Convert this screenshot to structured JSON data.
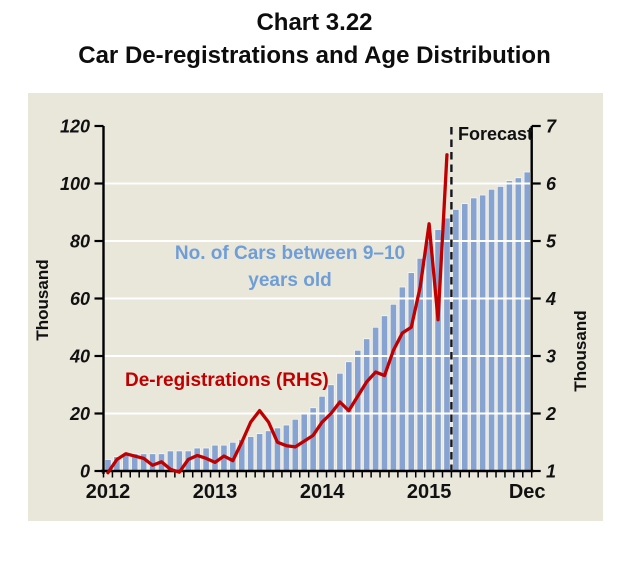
{
  "title": {
    "line1": "Chart 3.22",
    "line2": "Car De-registrations and Age Distribution"
  },
  "chart_data": {
    "type": "bar+line",
    "x": {
      "start": "Jan 2012",
      "end": "Dec 2015",
      "frequency": "monthly",
      "year_tick_labels": [
        "2012",
        "2013",
        "2014",
        "2015",
        "Dec"
      ],
      "year_tick_month_indices": [
        0,
        12,
        24,
        36,
        47
      ]
    },
    "left_axis": {
      "label": "Thousand",
      "range": [
        0,
        120
      ],
      "ticks": [
        0,
        20,
        40,
        60,
        80,
        100,
        120
      ]
    },
    "right_axis": {
      "label": "Thousand",
      "range": [
        1,
        7
      ],
      "ticks": [
        1,
        2,
        3,
        4,
        5,
        6,
        7
      ]
    },
    "series": [
      {
        "name": "No. of Cars between 9–10 years old",
        "type": "bar",
        "axis": "left",
        "color": "#86a3d2",
        "values": [
          4,
          5,
          6,
          6,
          6,
          6,
          6,
          7,
          7,
          7,
          8,
          8,
          9,
          9,
          10,
          11,
          12,
          13,
          14,
          15,
          16,
          18,
          20,
          22,
          26,
          30,
          34,
          38,
          42,
          46,
          50,
          54,
          58,
          64,
          69,
          74,
          80,
          84,
          88,
          91,
          93,
          95,
          96,
          98,
          99,
          101,
          102,
          104
        ]
      },
      {
        "name": "De-registrations (RHS)",
        "type": "line",
        "axis": "right",
        "color": "#c00000",
        "ends_at": "Mar 2015",
        "values": [
          0.97,
          1.2,
          1.3,
          1.26,
          1.22,
          1.1,
          1.16,
          1.03,
          0.98,
          1.2,
          1.27,
          1.22,
          1.15,
          1.26,
          1.18,
          1.5,
          1.85,
          2.05,
          1.85,
          1.5,
          1.44,
          1.42,
          1.52,
          1.62,
          1.85,
          2.0,
          2.2,
          2.05,
          2.3,
          2.55,
          2.72,
          2.66,
          3.1,
          3.4,
          3.5,
          4.2,
          5.3,
          3.63,
          6.5
        ]
      }
    ],
    "forecast": {
      "label": "Forecast",
      "boundary_month_index": 39,
      "starts_after": "Mar 2015",
      "line_style": "dashed"
    },
    "annotations": {
      "bars_label_line1": "No. of Cars between 9–10",
      "bars_label_line2": "years old",
      "line_label": "De-registrations (RHS)",
      "forecast_label": "Forecast"
    },
    "colors": {
      "panel_bg": "#e9e6da",
      "bar": "#86a3d2",
      "line": "#c00000",
      "annotation_blue": "#6f9ed6",
      "gridline": "#ffffff",
      "axis": "#000000",
      "forecast_dash": "#15151f"
    },
    "grid": "horizontal white lines at 20,40,60,80,100 (left axis)",
    "legend_position": "in-plot text annotations"
  }
}
